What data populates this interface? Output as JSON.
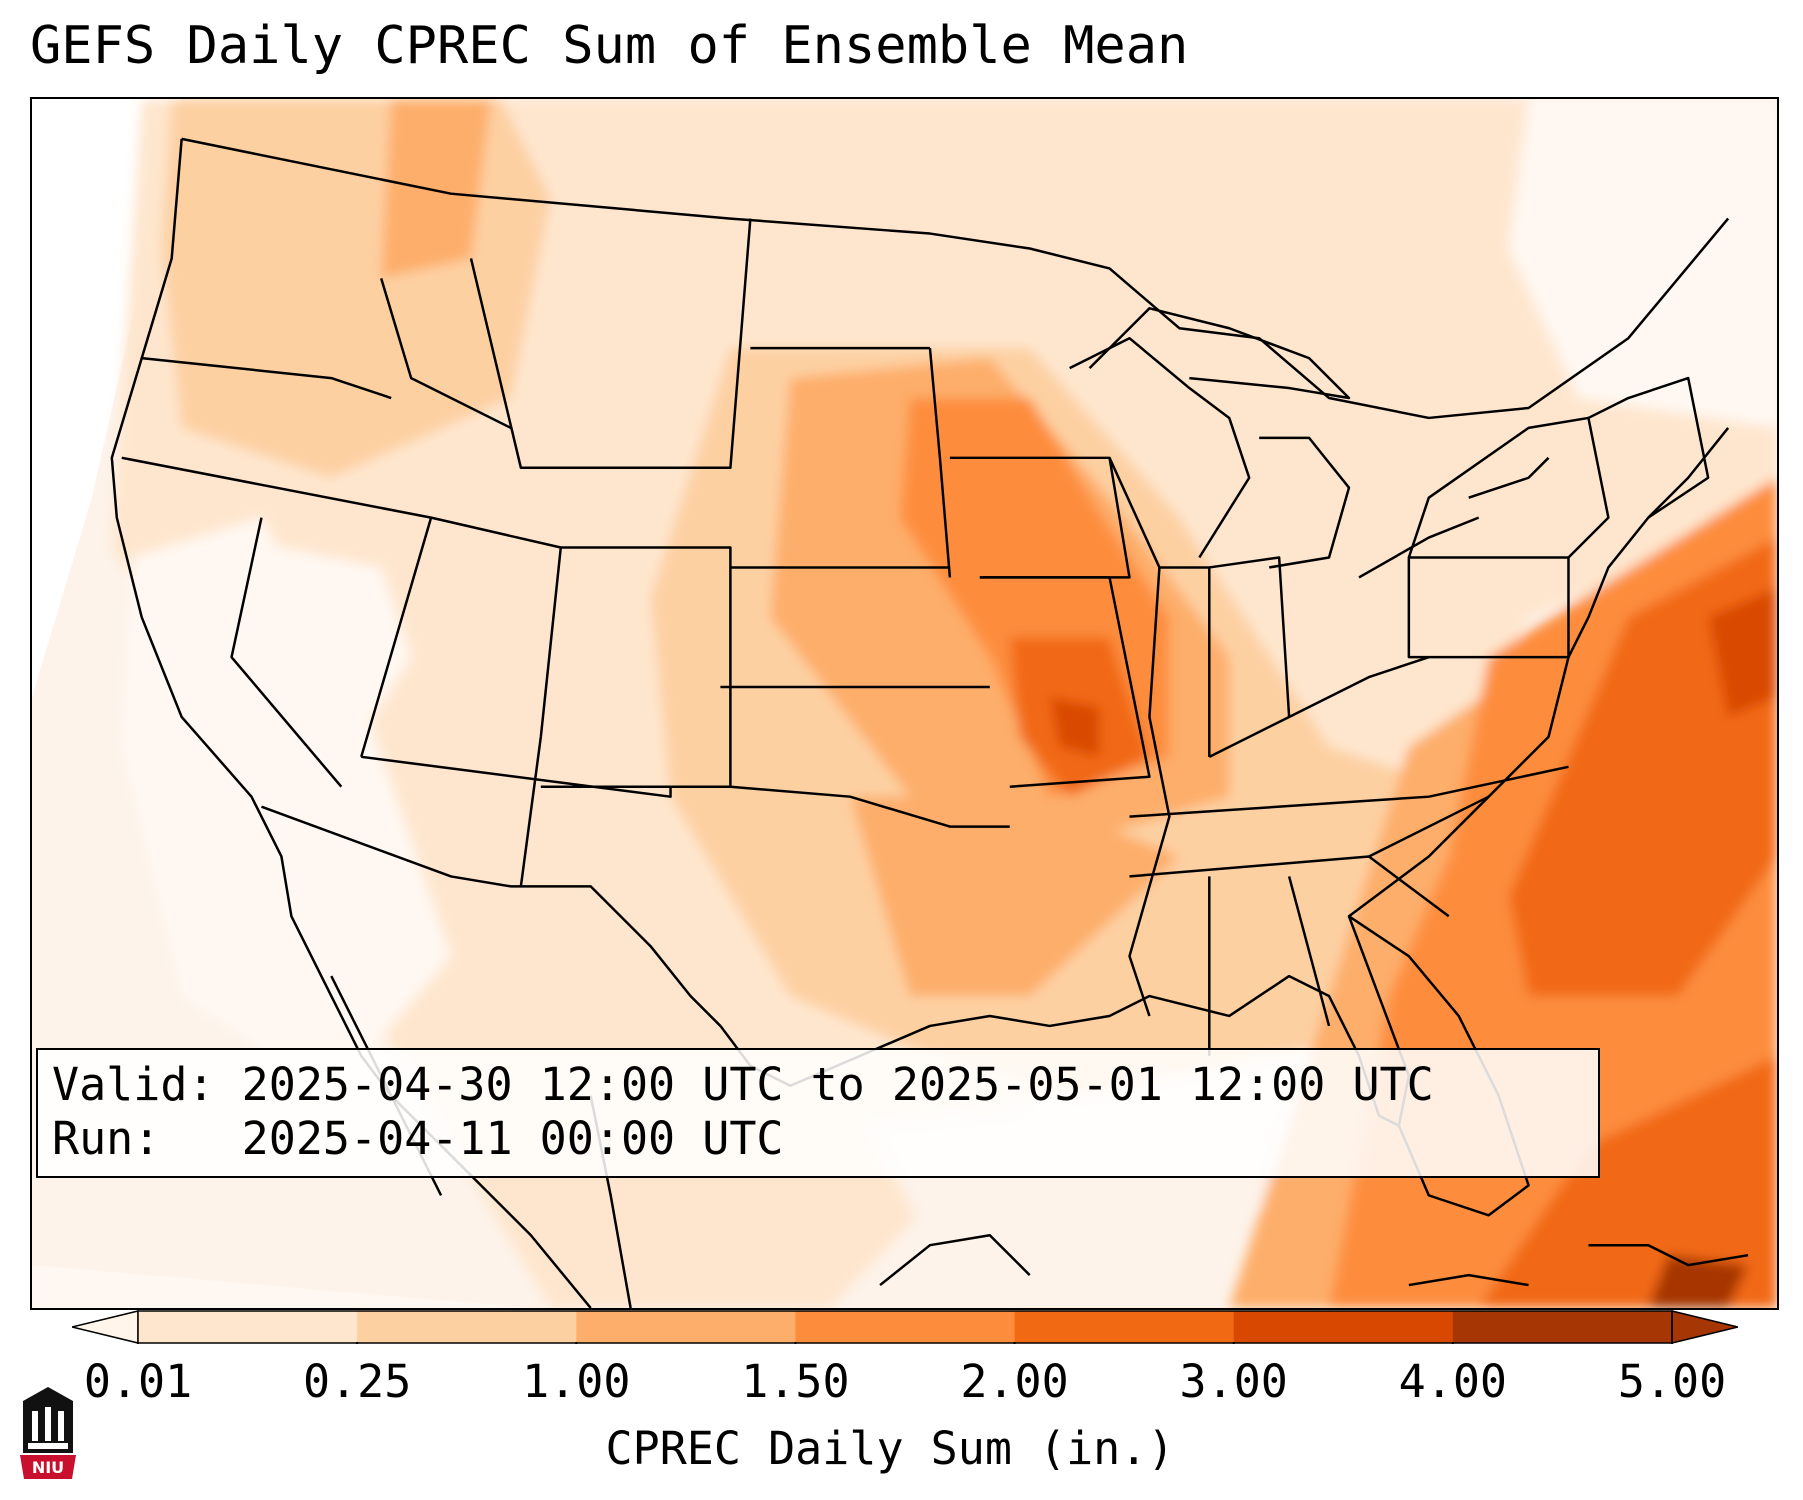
{
  "title": "GEFS Daily CPREC Sum of Ensemble Mean",
  "info": {
    "valid_label": "Valid:",
    "valid_value": "2025-04-30 12:00 UTC to 2025-05-01 12:00 UTC",
    "run_label": "Run:",
    "run_value": "2025-04-11 00:00 UTC"
  },
  "colorbar": {
    "label": "CPREC Daily Sum (in.)",
    "ticks": [
      "0.01",
      "0.25",
      "1.00",
      "1.50",
      "2.00",
      "3.00",
      "4.00",
      "5.00"
    ],
    "colors": [
      "#fff5eb",
      "#fee6ce",
      "#fdd0a2",
      "#fdae6b",
      "#fd8d3c",
      "#f16913",
      "#d94801",
      "#a63603"
    ],
    "extend": "both"
  },
  "map": {
    "projection": "Lambert Conformal",
    "region": "Continental United States",
    "colors": {
      "land_light": "#fdf3ea",
      "very_light": "#fff8f2",
      "light": "#fee6ce",
      "low": "#fdd0a2",
      "medium": "#fdae6b",
      "high": "#fd8d3c",
      "very_high": "#f16913",
      "max": "#d94801",
      "border": "#000000"
    }
  },
  "logo": {
    "text": "NIU"
  }
}
